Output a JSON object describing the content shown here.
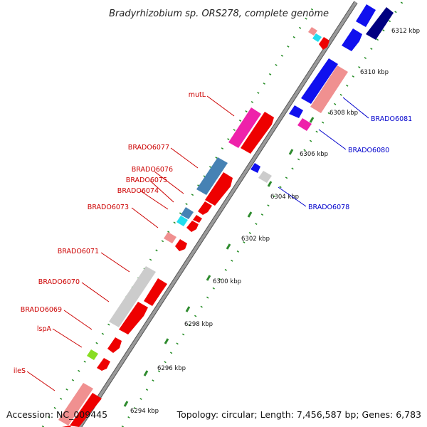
{
  "title": "Bradyrhizobium sp. ORS278, complete genome",
  "footer": {
    "accession": "Accession: NC_009445",
    "topology": "Topology: circular; Length: 7,456,587 bp; Genes: 6,783"
  },
  "colors": {
    "backbone": "#999999",
    "backbone_edge": "#555555",
    "tick_major": "#2e8b2e",
    "tick_minor": "#228b22",
    "label_left": "#cc0000",
    "label_right": "#0000cc"
  },
  "ticks": [
    {
      "label": "6294 kbp"
    },
    {
      "label": "6296 kbp"
    },
    {
      "label": "6298 kbp"
    },
    {
      "label": "6300 kbp"
    },
    {
      "label": "6302 kbp"
    },
    {
      "label": "6304 kbp"
    },
    {
      "label": "6306 kbp"
    },
    {
      "label": "6308 kbp"
    },
    {
      "label": "6310 kbp"
    },
    {
      "label": "6312 kbp"
    }
  ],
  "labels_left": [
    {
      "text": "mutL"
    },
    {
      "text": "BRADO6077"
    },
    {
      "text": "BRADO6076"
    },
    {
      "text": "BRADO6075"
    },
    {
      "text": "BRADO6074"
    },
    {
      "text": "BRADO6073"
    },
    {
      "text": "BRADO6071"
    },
    {
      "text": "BRADO6070"
    },
    {
      "text": "BRADO6069"
    },
    {
      "text": "lspA"
    },
    {
      "text": "ileS"
    }
  ],
  "labels_right": [
    {
      "text": "BRADO6081"
    },
    {
      "text": "BRADO6080"
    },
    {
      "text": "BRADO6078"
    }
  ]
}
